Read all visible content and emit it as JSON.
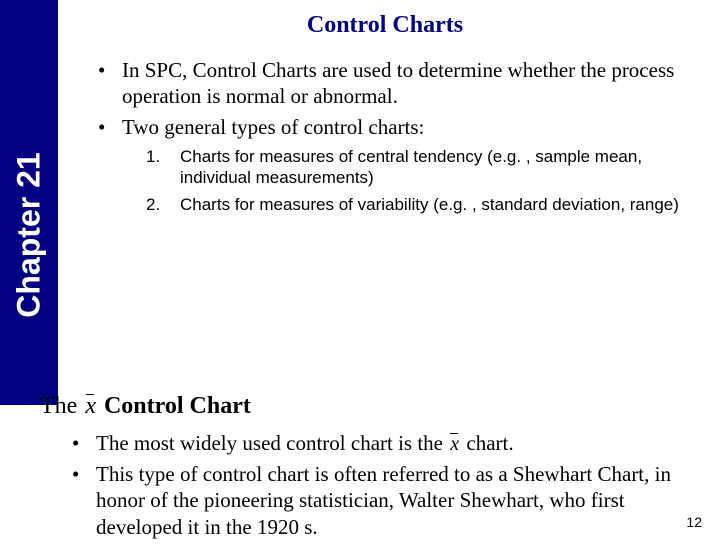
{
  "sidebar": {
    "label": "Chapter 21",
    "bg_color": "#000080",
    "text_color": "#ffffff"
  },
  "title": "Control Charts",
  "title_color": "#000080",
  "bullets1": {
    "item0": "In SPC, Control Charts are used to determine whether the process operation is normal or abnormal.",
    "item1": "Two general types of control charts:"
  },
  "numbered": {
    "n1": "1.",
    "item0": "Charts for measures of central tendency (e.g. , sample mean, individual measurements)",
    "n2": "2.",
    "item1": "Charts for measures of variability (e.g. , standard deviation, range)"
  },
  "subtitle": {
    "the": "The ",
    "xbar": "x",
    "rest": " Control Chart"
  },
  "bullets2": {
    "item0_a": "The most widely used control chart is the ",
    "item0_xbar": "x",
    "item0_b": " chart.",
    "item1": "This type of control chart is often referred to as a Shewhart Chart, in honor of the pioneering statistician, Walter Shewhart, who first developed it in the 1920 s."
  },
  "page_number": "12"
}
